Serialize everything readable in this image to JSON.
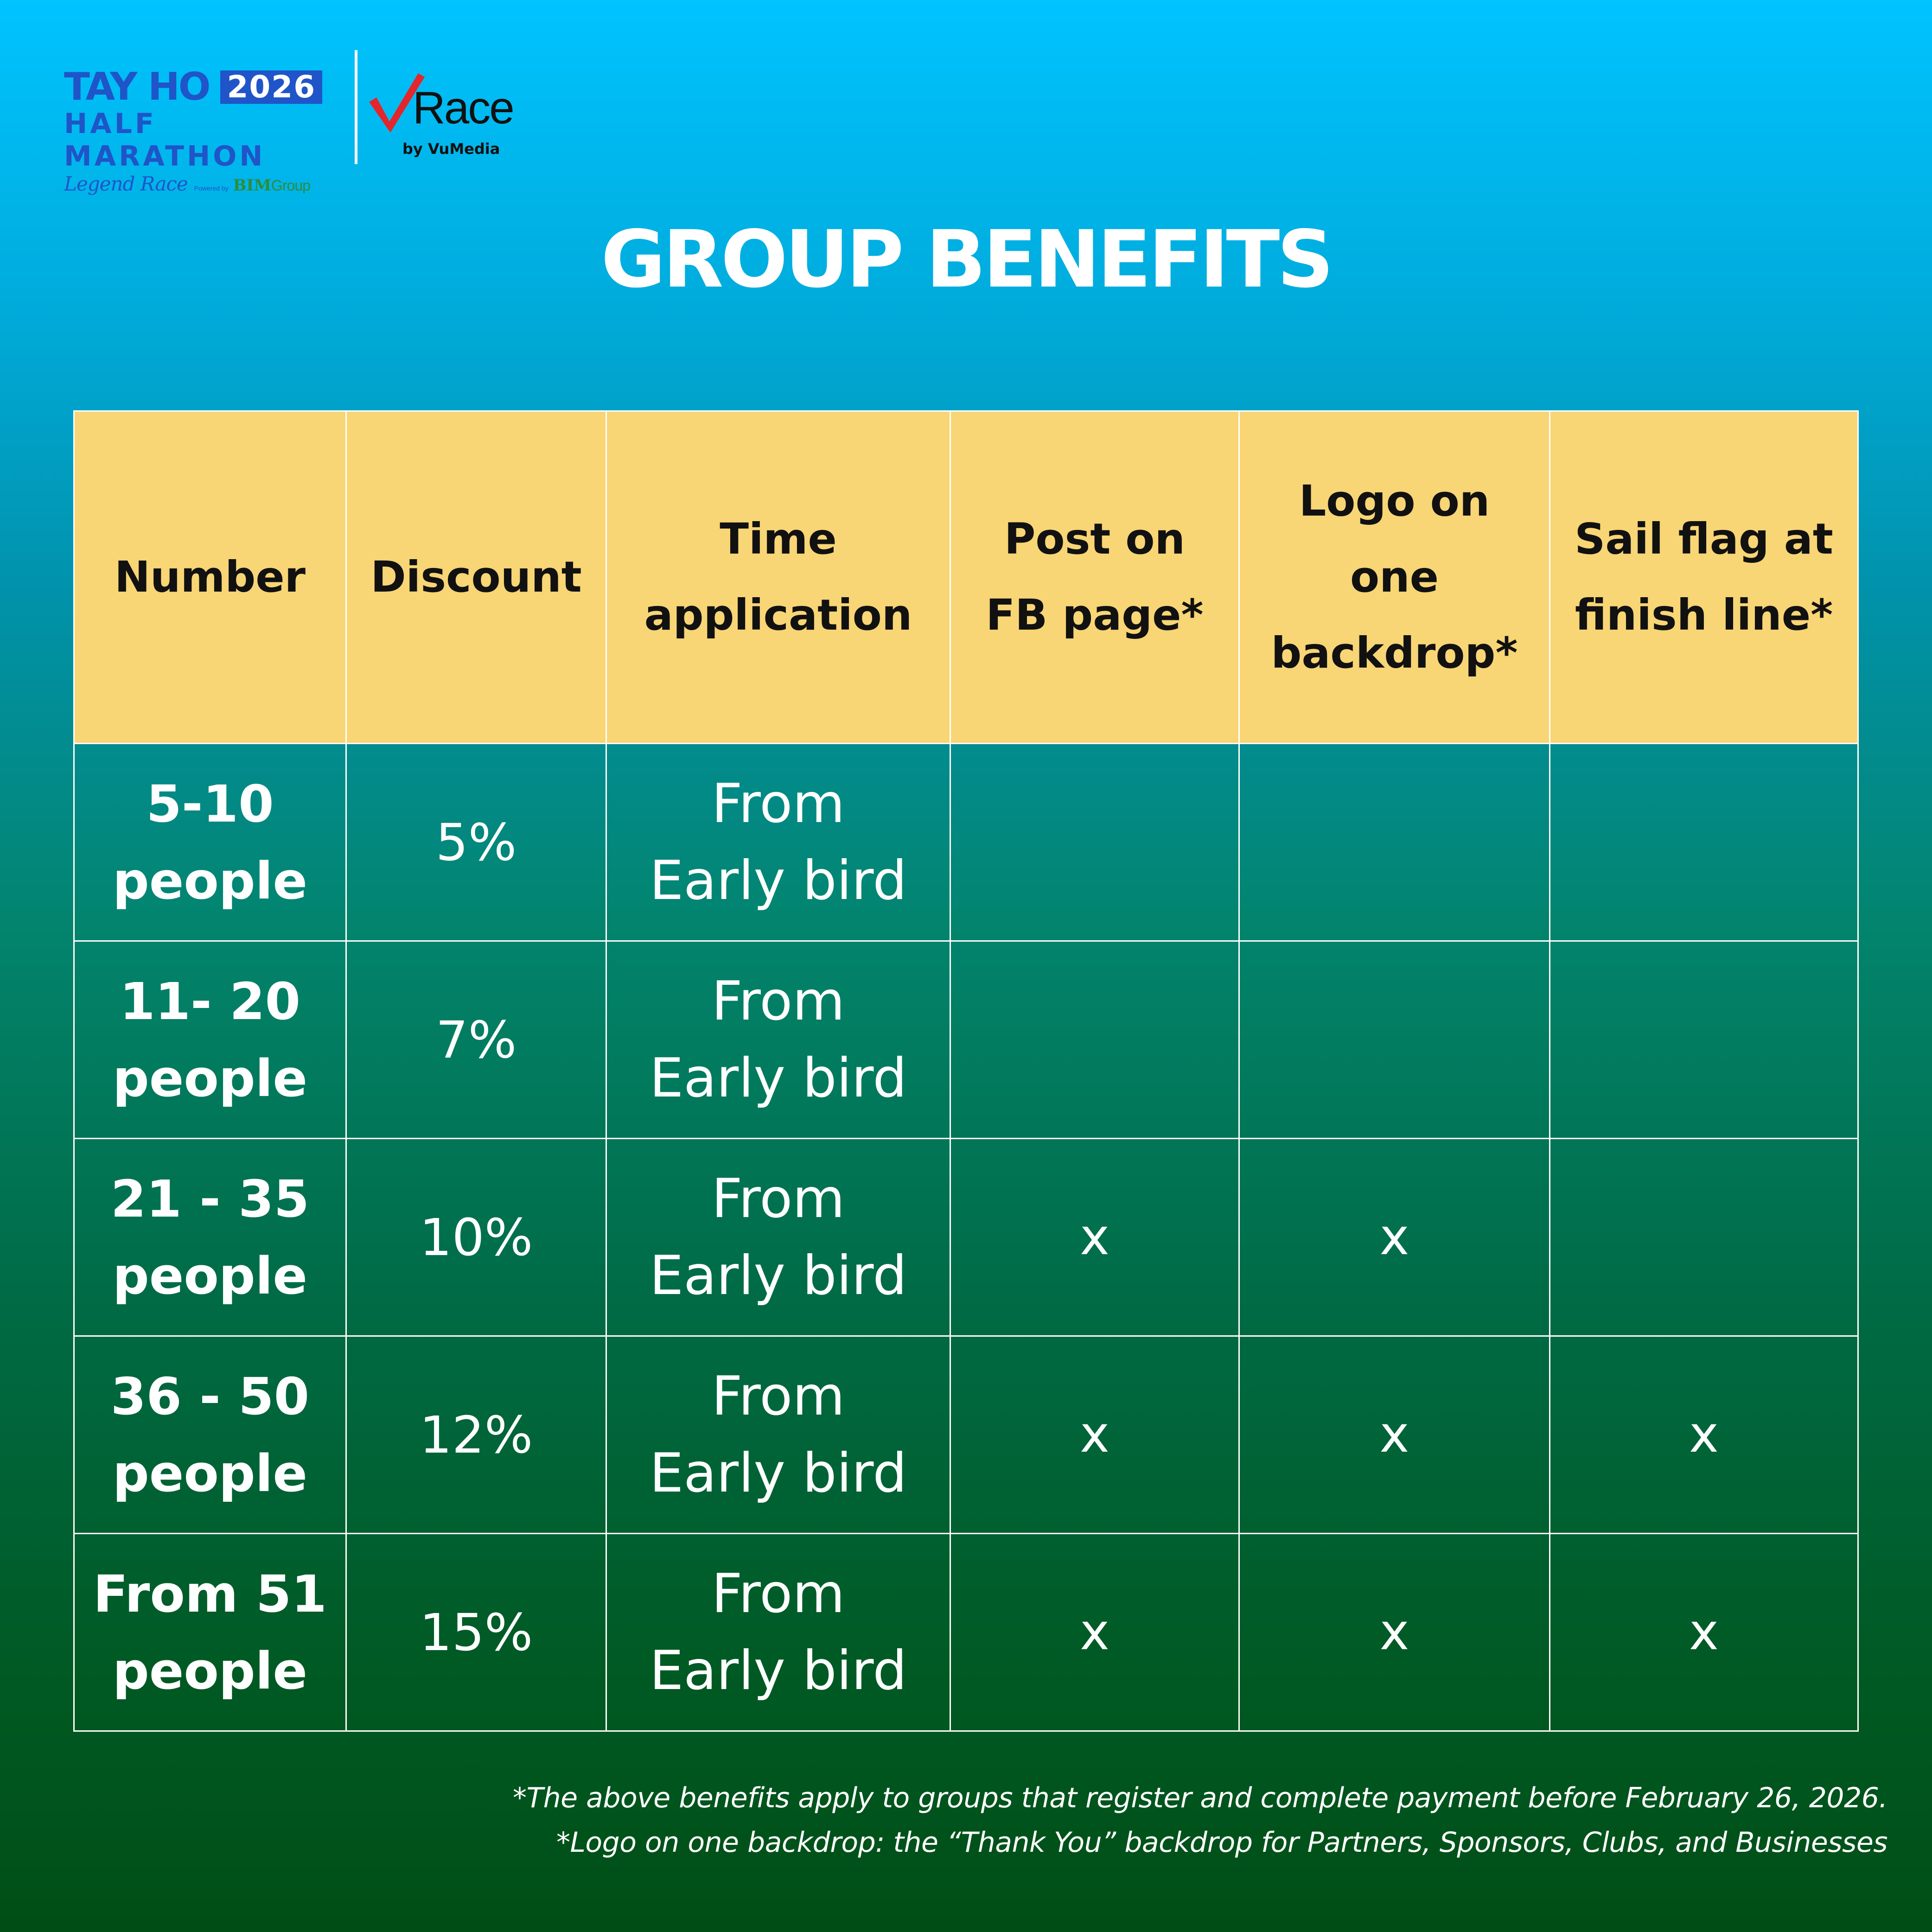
{
  "header": {
    "event_logo": {
      "name": "TAY HO",
      "year": "2026",
      "subtitle": "HALF MARATHON",
      "tagline": "Legend Race",
      "powered_by": "Powered by",
      "sponsor_bim": "BIM",
      "sponsor_group": "Group"
    },
    "platform_logo": {
      "name": "Race",
      "by_line": "by VuMedia"
    }
  },
  "title": "GROUP BENEFITS",
  "table": {
    "headers": [
      [
        "Number"
      ],
      [
        "Discount"
      ],
      [
        "Time",
        "application"
      ],
      [
        "Post on",
        "FB page*"
      ],
      [
        "Logo on one",
        "backdrop*"
      ],
      [
        "Sail flag at",
        "finish line*"
      ]
    ],
    "rows": [
      {
        "number": [
          "5-10",
          "people"
        ],
        "discount": "5%",
        "time": [
          "From",
          "Early bird"
        ],
        "fb_post": "",
        "logo_backdrop": "",
        "sail_flag": ""
      },
      {
        "number": [
          "11- 20",
          "people"
        ],
        "discount": "7%",
        "time": [
          "From",
          "Early bird"
        ],
        "fb_post": "",
        "logo_backdrop": "",
        "sail_flag": ""
      },
      {
        "number": [
          "21 - 35",
          "people"
        ],
        "discount": "10%",
        "time": [
          "From",
          "Early bird"
        ],
        "fb_post": "x",
        "logo_backdrop": "x",
        "sail_flag": ""
      },
      {
        "number": [
          "36 - 50",
          "people"
        ],
        "discount": "12%",
        "time": [
          "From",
          "Early bird"
        ],
        "fb_post": "x",
        "logo_backdrop": "x",
        "sail_flag": "x"
      },
      {
        "number": [
          "From 51",
          "people"
        ],
        "discount": "15%",
        "time": [
          "From",
          "Early bird"
        ],
        "fb_post": "x",
        "logo_backdrop": "x",
        "sail_flag": "x"
      }
    ]
  },
  "footnotes": [
    "*The above benefits apply to groups that register and complete payment before February 26, 2026.",
    "*Logo on one backdrop: the “Thank You” backdrop for Partners, Sponsors, Clubs, and Businesses"
  ],
  "colors": {
    "header_row": "#f8d575",
    "logo_blue": "#1f55c8",
    "logo_green": "#2e8c3a",
    "check_red": "#e3262c",
    "gradient_top": "#00c3ff",
    "gradient_bottom": "#004e16"
  }
}
